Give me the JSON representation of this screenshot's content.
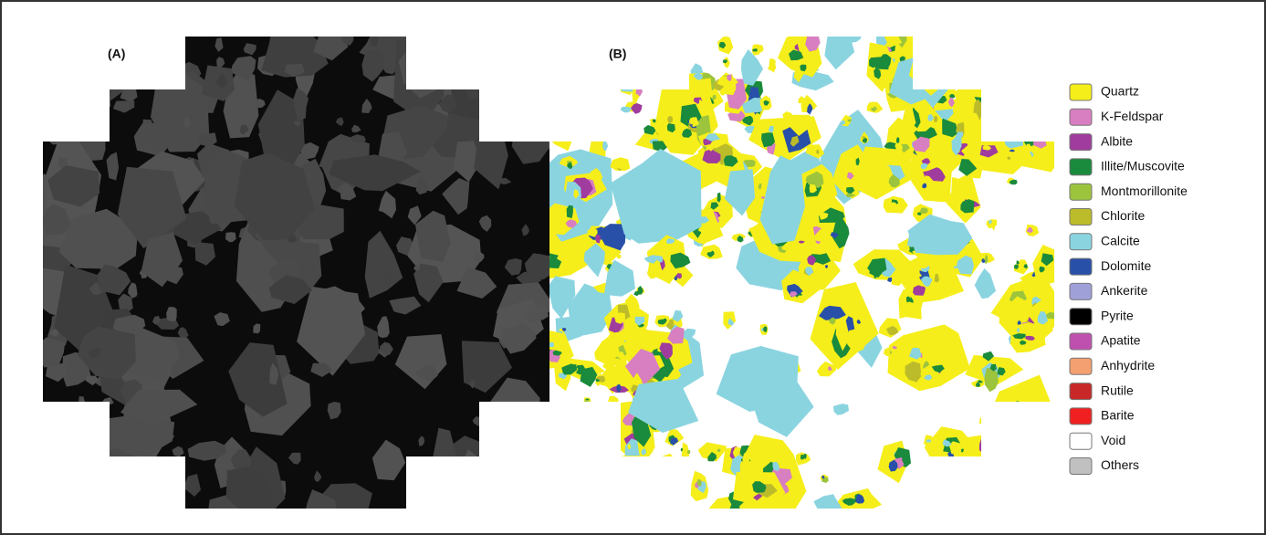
{
  "panels": [
    {
      "label": "(A)"
    },
    {
      "label": "(B)"
    }
  ],
  "legend": [
    {
      "name": "Quartz",
      "color": "#f5ee1a"
    },
    {
      "name": "K-Feldspar",
      "color": "#d77fc0"
    },
    {
      "name": "Albite",
      "color": "#a03c9e"
    },
    {
      "name": "Illite/Muscovite",
      "color": "#1a8a3c"
    },
    {
      "name": "Montmorillonite",
      "color": "#9cc43c"
    },
    {
      "name": "Chlorite",
      "color": "#bcbc2a"
    },
    {
      "name": "Calcite",
      "color": "#8ad4e0"
    },
    {
      "name": "Dolomite",
      "color": "#2850a8"
    },
    {
      "name": "Ankerite",
      "color": "#a0a0d8"
    },
    {
      "name": "Pyrite",
      "color": "#000000"
    },
    {
      "name": "Apatite",
      "color": "#c050b0"
    },
    {
      "name": "Anhydrite",
      "color": "#f4a070"
    },
    {
      "name": "Rutile",
      "color": "#c82828"
    },
    {
      "name": "Barite",
      "color": "#f02020"
    },
    {
      "name": "Void",
      "color": "#ffffff"
    },
    {
      "name": "Others",
      "color": "#c0c0c0"
    }
  ]
}
